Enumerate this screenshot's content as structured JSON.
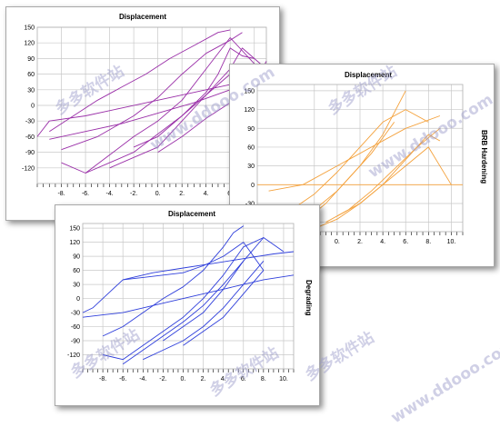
{
  "watermarks": [
    "多多软件站",
    "多多软件站",
    "多多软件站",
    "多多软件站",
    "多多软件站",
    "www.ddooo.com",
    "www.ddooo.com",
    "www.ddooo.com"
  ],
  "chart_data": [
    {
      "type": "line",
      "title": "Displacement",
      "side_label": "",
      "color": "#9a2fa8",
      "xlim": [
        -10,
        9
      ],
      "ylim": [
        -150,
        150
      ],
      "yticks": [
        150,
        120,
        90,
        60,
        30,
        0,
        -30,
        -60,
        -90,
        -120
      ],
      "xticks": [
        -8,
        -6,
        -4,
        -2,
        0,
        2,
        4,
        6,
        8
      ],
      "series": [
        {
          "x": [
            -10,
            -9,
            -6,
            -3,
            0,
            3,
            6,
            8
          ],
          "y": [
            -60,
            -30,
            -20,
            -5,
            10,
            25,
            40,
            50
          ]
        },
        {
          "x": [
            -9,
            -6,
            -3,
            0,
            3,
            6,
            8,
            9
          ],
          "y": [
            -65,
            -50,
            -35,
            -15,
            5,
            30,
            55,
            65
          ]
        },
        {
          "x": [
            -8,
            -6,
            -4,
            -2,
            0,
            2,
            4,
            6,
            8
          ],
          "y": [
            -110,
            -130,
            -95,
            -60,
            -30,
            10,
            70,
            130,
            80
          ]
        },
        {
          "x": [
            -8,
            -5,
            -2,
            0,
            2,
            4,
            6,
            7
          ],
          "y": [
            -85,
            -60,
            -20,
            15,
            60,
            100,
            125,
            140
          ]
        },
        {
          "x": [
            -6,
            -4,
            -2,
            0,
            2,
            4,
            6,
            7,
            8,
            9
          ],
          "y": [
            -130,
            -110,
            -90,
            -55,
            -20,
            20,
            70,
            110,
            90,
            70
          ]
        },
        {
          "x": [
            -9,
            -7,
            -5,
            -3,
            -1,
            1,
            3,
            5,
            6
          ],
          "y": [
            -50,
            -20,
            10,
            35,
            60,
            90,
            115,
            140,
            145
          ]
        },
        {
          "x": [
            -4,
            -2,
            0,
            2,
            4,
            6
          ],
          "y": [
            -120,
            -100,
            -80,
            -30,
            20,
            60
          ]
        },
        {
          "x": [
            0,
            2,
            4,
            6,
            8,
            9
          ],
          "y": [
            -90,
            -60,
            -25,
            5,
            40,
            85
          ]
        },
        {
          "x": [
            -2,
            0,
            2,
            4,
            5,
            6,
            7,
            8
          ],
          "y": [
            -80,
            -60,
            -20,
            25,
            60,
            110,
            95,
            90
          ]
        }
      ]
    },
    {
      "type": "line",
      "title": "Displacement",
      "side_label": "BRB Hardening",
      "color": "#f4a13b",
      "xlim": [
        -7,
        11
      ],
      "ylim": [
        -75,
        160
      ],
      "yticks": [
        150,
        120,
        90,
        60,
        30,
        0,
        -30,
        -60
      ],
      "xticks": [
        -2,
        0,
        2,
        4,
        6,
        8,
        10
      ],
      "series": [
        {
          "x": [
            -7,
            11
          ],
          "y": [
            0,
            0
          ]
        },
        {
          "x": [
            -6,
            -4,
            -2,
            0,
            2,
            4,
            6
          ],
          "y": [
            -70,
            -60,
            -40,
            -10,
            30,
            80,
            150
          ]
        },
        {
          "x": [
            -4,
            -2,
            0,
            2,
            4,
            6,
            8
          ],
          "y": [
            -40,
            -15,
            20,
            60,
            100,
            120,
            100
          ]
        },
        {
          "x": [
            -2,
            0,
            2,
            4,
            6,
            8,
            9
          ],
          "y": [
            -70,
            -55,
            -30,
            0,
            40,
            80,
            70
          ]
        },
        {
          "x": [
            -1,
            1,
            3,
            5,
            7,
            9
          ],
          "y": [
            -60,
            -40,
            -10,
            25,
            60,
            90
          ]
        },
        {
          "x": [
            0,
            2,
            4,
            6,
            8,
            10
          ],
          "y": [
            -50,
            -30,
            0,
            30,
            60,
            0
          ]
        },
        {
          "x": [
            -6,
            -3,
            0,
            3,
            6,
            9
          ],
          "y": [
            -10,
            0,
            30,
            60,
            90,
            110
          ]
        },
        {
          "x": [
            -3,
            -1,
            1,
            3,
            5
          ],
          "y": [
            -60,
            -30,
            10,
            50,
            100
          ]
        }
      ]
    },
    {
      "type": "line",
      "title": "Displacement",
      "side_label": "Degrading",
      "color": "#2f3fdb",
      "xlim": [
        -10,
        11
      ],
      "ylim": [
        -150,
        160
      ],
      "yticks": [
        150,
        120,
        90,
        60,
        30,
        0,
        -30,
        -60,
        -90,
        -120
      ],
      "xticks": [
        -8,
        -6,
        -4,
        -2,
        0,
        2,
        4,
        6,
        8,
        10
      ],
      "series": [
        {
          "x": [
            -10,
            -9,
            -8,
            -6,
            -3,
            0,
            3,
            6,
            9,
            11
          ],
          "y": [
            -30,
            -20,
            0,
            40,
            55,
            65,
            75,
            85,
            95,
            100
          ]
        },
        {
          "x": [
            -10,
            -8,
            -6,
            -4,
            -2,
            0,
            2,
            4,
            6,
            8,
            11
          ],
          "y": [
            -40,
            -35,
            -30,
            -20,
            -10,
            0,
            10,
            20,
            30,
            40,
            50
          ]
        },
        {
          "x": [
            -8,
            -6,
            -4,
            -2,
            0,
            2,
            4,
            6,
            8
          ],
          "y": [
            -120,
            -130,
            -100,
            -70,
            -40,
            0,
            50,
            110,
            130
          ]
        },
        {
          "x": [
            -6,
            -4,
            -2,
            0,
            2,
            4,
            6,
            8,
            10
          ],
          "y": [
            -140,
            -110,
            -80,
            -50,
            -15,
            30,
            80,
            130,
            100
          ]
        },
        {
          "x": [
            -8,
            -6,
            -4,
            -2,
            0,
            2,
            4,
            5,
            6
          ],
          "y": [
            -80,
            -60,
            -30,
            0,
            25,
            60,
            110,
            140,
            155
          ]
        },
        {
          "x": [
            -4,
            -2,
            0,
            2,
            4,
            6,
            8
          ],
          "y": [
            -130,
            -110,
            -90,
            -60,
            -20,
            30,
            80
          ]
        },
        {
          "x": [
            -6,
            -4,
            -2,
            0,
            2,
            4,
            6,
            8
          ],
          "y": [
            40,
            45,
            50,
            55,
            70,
            90,
            120,
            60
          ]
        },
        {
          "x": [
            0,
            2,
            4,
            6,
            8
          ],
          "y": [
            -100,
            -70,
            -40,
            10,
            60
          ]
        },
        {
          "x": [
            -2,
            0,
            2,
            4,
            6
          ],
          "y": [
            -90,
            -60,
            -30,
            20,
            80
          ]
        }
      ]
    }
  ]
}
